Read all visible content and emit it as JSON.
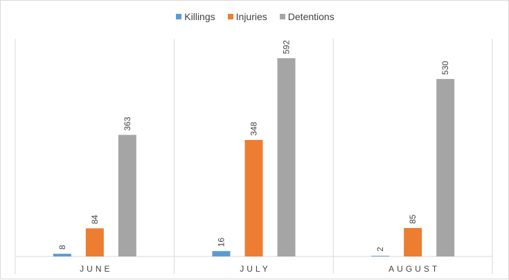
{
  "chart_data": {
    "type": "bar",
    "categories": [
      "JUNE",
      "JULY",
      "AUGUST"
    ],
    "series": [
      {
        "name": "Killings",
        "color": "#5b9bd5",
        "values": [
          8,
          16,
          2
        ]
      },
      {
        "name": "Injuries",
        "color": "#ed7d31",
        "values": [
          84,
          348,
          85
        ]
      },
      {
        "name": "Detentions",
        "color": "#a5a5a5",
        "values": [
          363,
          592,
          530
        ]
      }
    ],
    "title": "",
    "xlabel": "",
    "ylabel": "",
    "ylim": [
      0,
      650
    ],
    "grid": false,
    "legend_position": "top",
    "data_labels": true
  }
}
